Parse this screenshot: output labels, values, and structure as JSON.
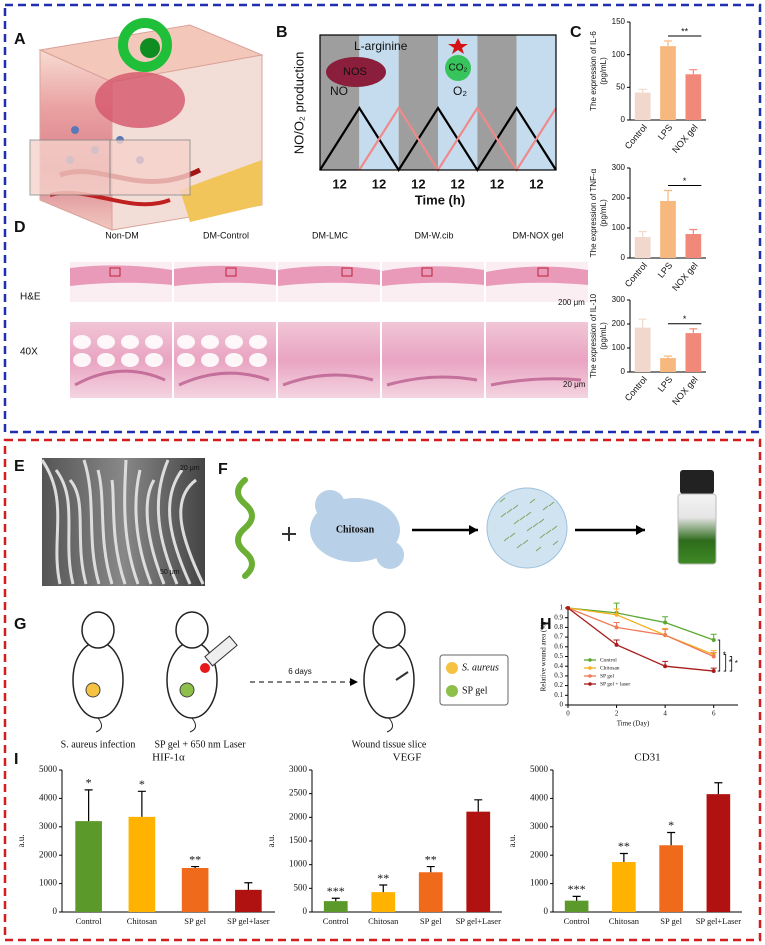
{
  "panel_labels": [
    "A",
    "B",
    "C",
    "D",
    "E",
    "F",
    "G",
    "H",
    "I"
  ],
  "panel_b": {
    "substrate": "L-arginine",
    "enzyme": "NOS",
    "product": "NO",
    "co2": "CO₂",
    "o2": "O₂",
    "ylabel": "NO/O₂ production",
    "xlabel": "Time (h)",
    "xtick_labels": [
      "12",
      "12",
      "12",
      "12",
      "12",
      "12"
    ]
  },
  "panel_d": {
    "columns": [
      "Non-DM",
      "DM-Control",
      "DM-LMC",
      "DM-W.cib",
      "DM-NOX gel"
    ],
    "rows": [
      "H&E",
      "40X"
    ],
    "scale_bars": [
      "200 μm",
      "20 μm"
    ]
  },
  "panel_e": {
    "scale_bars": [
      "20 μm",
      "50 μm"
    ]
  },
  "panel_f": {
    "label": "Chitosan"
  },
  "panel_g": {
    "captions": [
      "S. aureus infection",
      "SP gel + 650 nm Laser",
      "Wound tissue slice"
    ],
    "arrow_label": "6 days",
    "legend": [
      "S. aureus",
      "SP gel"
    ]
  },
  "chart_data": [
    {
      "type": "bar",
      "ylabel": "The expression of IL-6",
      "yunit": "(pg/mL)",
      "categories": [
        "Control",
        "LPS",
        "NOX gel"
      ],
      "values": [
        42,
        113,
        70
      ],
      "errors": [
        5,
        8,
        7
      ],
      "colors": [
        "#f2d8cc",
        "#f6b87c",
        "#f1897a"
      ],
      "ylim": [
        0,
        150
      ],
      "yticks": [
        0,
        50,
        100,
        150
      ],
      "bracket_label": "**"
    },
    {
      "type": "bar",
      "ylabel": "The expression of TNF-α",
      "yunit": "(pg/mL)",
      "categories": [
        "Control",
        "LPS",
        "NOX gel"
      ],
      "values": [
        70,
        190,
        80
      ],
      "errors": [
        18,
        35,
        15
      ],
      "colors": [
        "#f2d8cc",
        "#f6b87c",
        "#f1897a"
      ],
      "ylim": [
        0,
        300
      ],
      "yticks": [
        0,
        100,
        200,
        300
      ],
      "bracket_label": "*"
    },
    {
      "type": "bar",
      "ylabel": "The expression of IL-10",
      "yunit": "(pg/mL)",
      "categories": [
        "Control",
        "LPS",
        "NOX gel"
      ],
      "values": [
        185,
        58,
        162
      ],
      "errors": [
        35,
        8,
        18
      ],
      "colors": [
        "#f2d8cc",
        "#f6b87c",
        "#f1897a"
      ],
      "ylim": [
        0,
        300
      ],
      "yticks": [
        0,
        100,
        200,
        300
      ],
      "bracket_label": "*"
    },
    {
      "type": "line",
      "ylabel": "Relative wound area (%)",
      "xlabel": "Time (Day)",
      "x": [
        0,
        2,
        4,
        6
      ],
      "series": [
        {
          "name": "Control",
          "color": "#5aa832",
          "values": [
            1,
            0.95,
            0.85,
            0.67
          ],
          "errors": [
            0,
            0.1,
            0.06,
            0.06
          ]
        },
        {
          "name": "Chitosan",
          "color": "#f5b021",
          "values": [
            1,
            0.93,
            0.72,
            0.52
          ],
          "errors": [
            0,
            0.06,
            0.07,
            0.04
          ]
        },
        {
          "name": "SP gel",
          "color": "#ee7b5a",
          "values": [
            1,
            0.8,
            0.72,
            0.5
          ],
          "errors": [
            0,
            0.05,
            0.06,
            0.04
          ]
        },
        {
          "name": "SP gel + laser",
          "color": "#a81c1c",
          "values": [
            1,
            0.62,
            0.4,
            0.35
          ],
          "errors": [
            0,
            0.05,
            0.05,
            0.03
          ]
        }
      ],
      "xlim": [
        0,
        7
      ],
      "ylim": [
        0,
        1
      ],
      "xticks": [
        0,
        2,
        4,
        6
      ],
      "yticks": [
        0,
        0.1,
        0.2,
        0.3,
        0.4,
        0.5,
        0.6,
        0.7,
        0.8,
        0.9,
        1
      ],
      "significance": [
        "*",
        "*",
        "*"
      ],
      "legend": "lower left"
    },
    {
      "type": "bar",
      "title": "HIF-1α",
      "ylabel": "a.u.",
      "categories": [
        "Control",
        "Chitosan",
        "SP gel",
        "SP gel+laser"
      ],
      "values": [
        3200,
        3350,
        1550,
        780
      ],
      "errors": [
        1100,
        900,
        50,
        250
      ],
      "colors": [
        "#5b9a2a",
        "#ffb300",
        "#f06a1c",
        "#b01212"
      ],
      "ylim": [
        0,
        5000
      ],
      "yticks": [
        0,
        1000,
        2000,
        3000,
        4000,
        5000
      ],
      "annotations": [
        "*",
        "*",
        "**",
        null
      ]
    },
    {
      "type": "bar",
      "title": "VEGF",
      "ylabel": "a.u.",
      "categories": [
        "Control",
        "Chitosan",
        "SP gel",
        "SP gel+Laser"
      ],
      "values": [
        230,
        420,
        840,
        2120
      ],
      "errors": [
        60,
        150,
        120,
        250
      ],
      "colors": [
        "#5b9a2a",
        "#ffb300",
        "#f06a1c",
        "#b01212"
      ],
      "ylim": [
        0,
        3000
      ],
      "yticks": [
        0,
        500,
        1000,
        1500,
        2000,
        2500,
        3000
      ],
      "annotations": [
        "***",
        "**",
        "**",
        null
      ]
    },
    {
      "type": "bar",
      "title": "CD31",
      "ylabel": "a.u.",
      "categories": [
        "Control",
        "Chitosan",
        "SP gel",
        "SP gel+Laser"
      ],
      "values": [
        400,
        1760,
        2350,
        4150
      ],
      "errors": [
        150,
        300,
        450,
        400
      ],
      "colors": [
        "#5b9a2a",
        "#ffb300",
        "#f06a1c",
        "#b01212"
      ],
      "ylim": [
        0,
        5000
      ],
      "yticks": [
        0,
        1000,
        2000,
        3000,
        4000,
        5000
      ],
      "annotations": [
        "***",
        "**",
        "*",
        null
      ]
    }
  ]
}
